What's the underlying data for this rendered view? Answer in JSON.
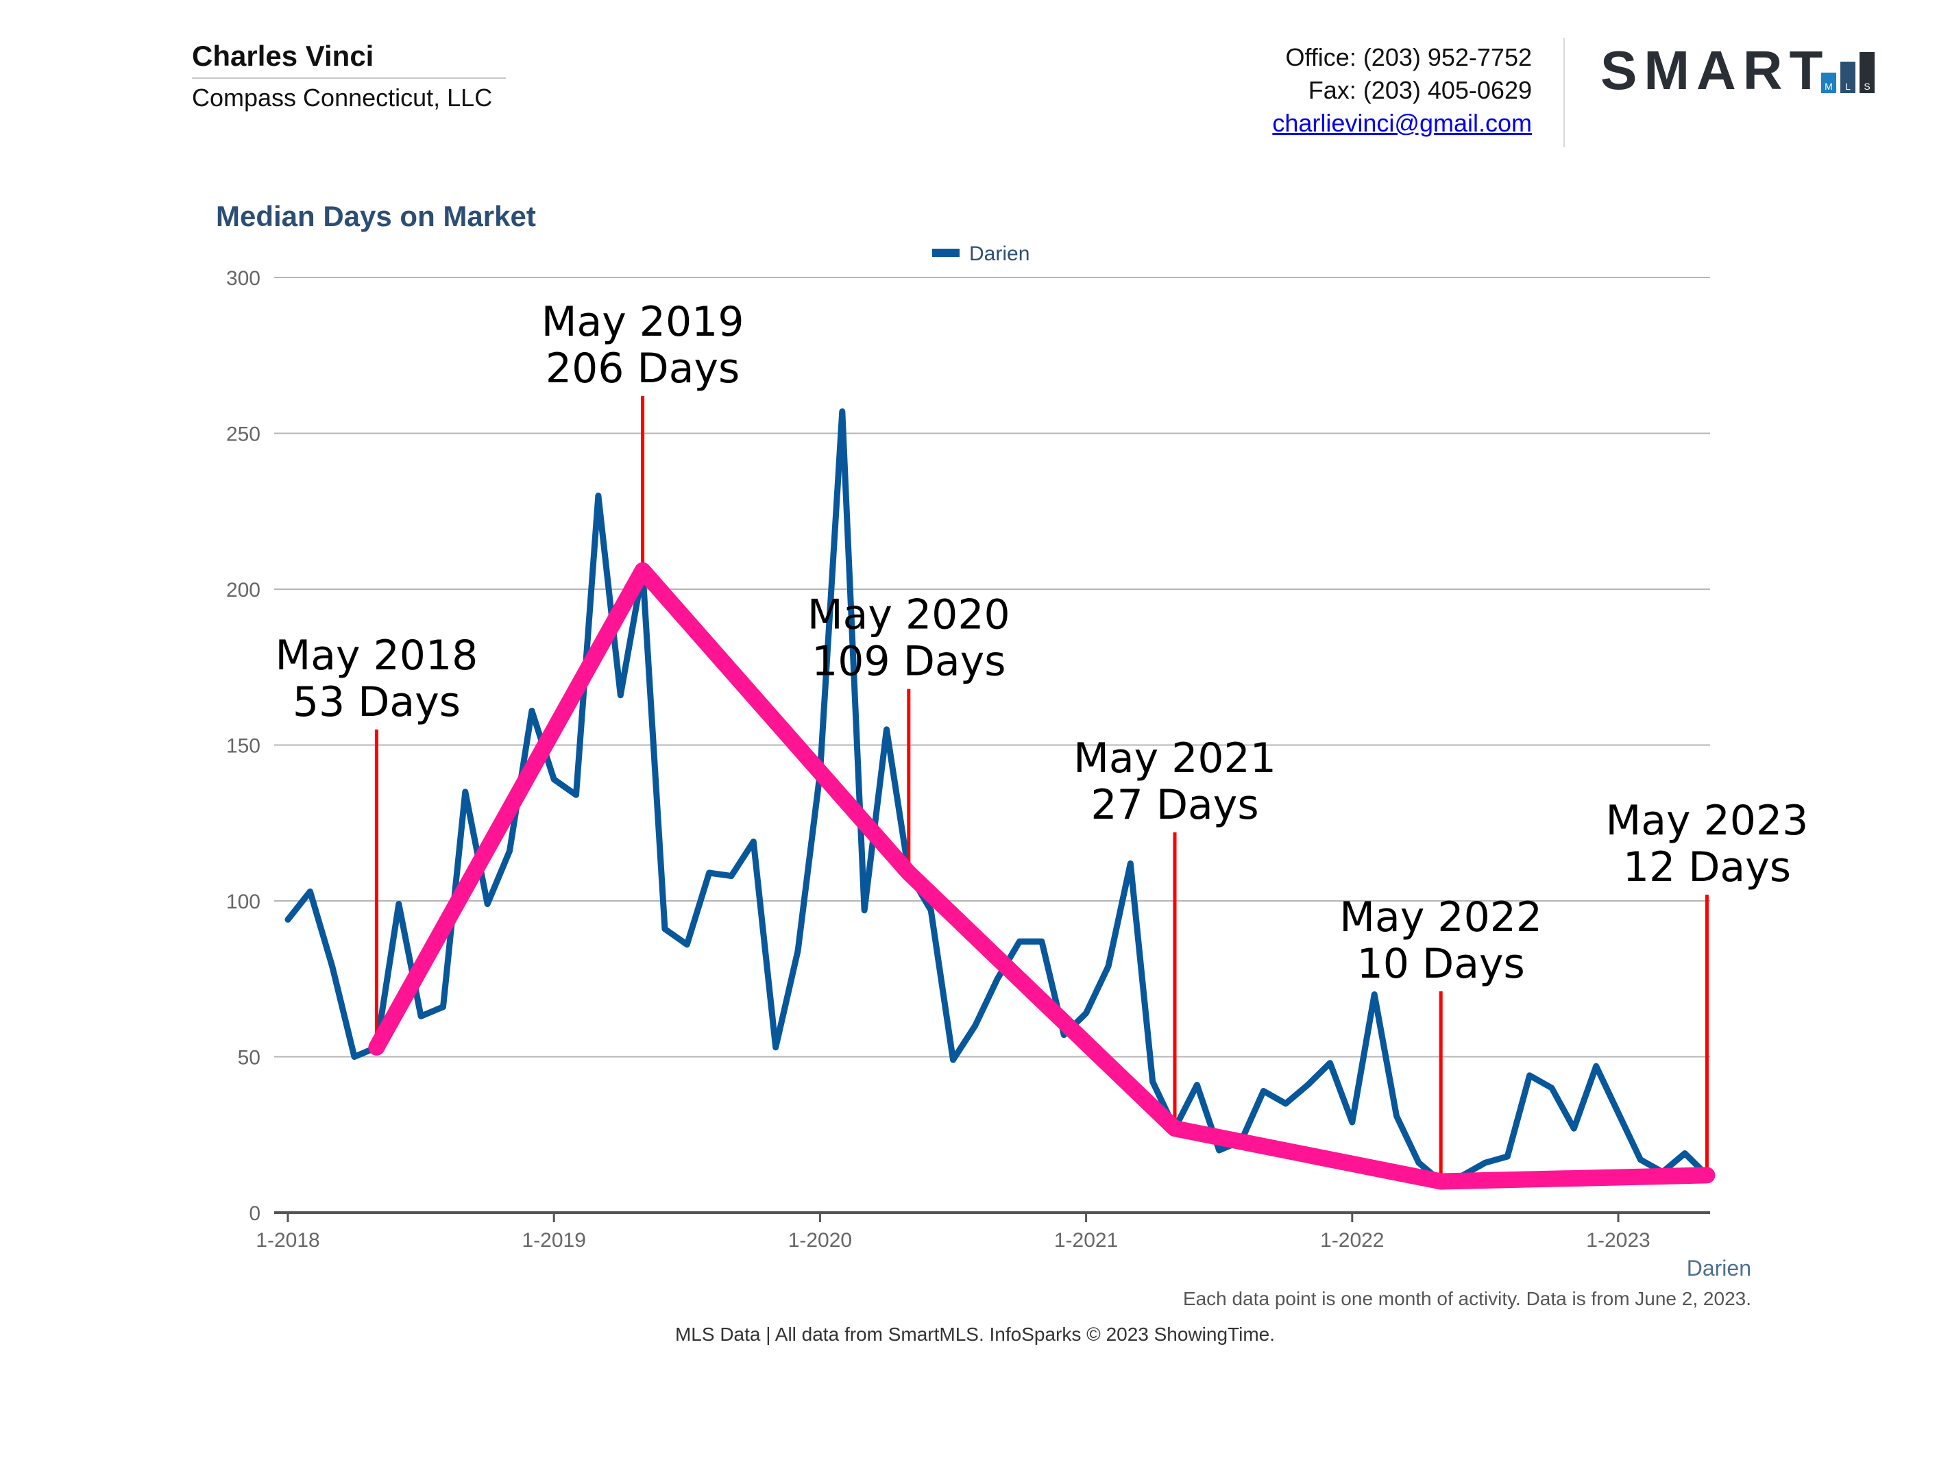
{
  "header": {
    "agent_name": "Charles Vinci",
    "company": "Compass Connecticut, LLC",
    "office": "Office: (203) 952-7752",
    "fax": "Fax: (203) 405-0629",
    "email": "charlievinci@gmail.com",
    "logo_text": "SMART",
    "logo_letters": [
      "M",
      "L",
      "S"
    ]
  },
  "colors": {
    "series": "#08579b",
    "trend": "#ff1493",
    "marker": "#ff0000",
    "title": "#2d4e74",
    "axis_text": "#666666",
    "logo_dark": "#2a2f36",
    "logo_blue": "#1e7fc1",
    "logo_mid": "#2b5070"
  },
  "chart_data": {
    "type": "line",
    "title": "Median Days on Market",
    "legend": [
      "Darien"
    ],
    "legend_position": "top-center",
    "xlabel": "Darien",
    "ylabel": "",
    "ylim": [
      0,
      300
    ],
    "yticks": [
      0,
      50,
      100,
      150,
      200,
      250,
      300
    ],
    "xticks": [
      "1-2018",
      "1-2019",
      "1-2020",
      "1-2021",
      "1-2022",
      "1-2023"
    ],
    "series": [
      {
        "name": "Darien",
        "start": "1-2018",
        "values": [
          94,
          103,
          79,
          50,
          53,
          99,
          63,
          66,
          135,
          99,
          116,
          161,
          139,
          134,
          230,
          166,
          206,
          91,
          86,
          109,
          108,
          119,
          53,
          84,
          141,
          257,
          97,
          155,
          109,
          97,
          49,
          60,
          75,
          87,
          87,
          57,
          64,
          79,
          112,
          42,
          27,
          41,
          20,
          23,
          39,
          35,
          41,
          48,
          29,
          70,
          31,
          16,
          10,
          12,
          16,
          18,
          44,
          40,
          27,
          47,
          32,
          17,
          13,
          19,
          12
        ]
      }
    ],
    "trend": {
      "points": [
        {
          "month": 4,
          "value": 53
        },
        {
          "month": 16,
          "value": 206
        },
        {
          "month": 28,
          "value": 109
        },
        {
          "month": 40,
          "value": 27
        },
        {
          "month": 52,
          "value": 10
        },
        {
          "month": 64,
          "value": 12
        }
      ]
    },
    "annotations": [
      {
        "month": 4,
        "line_top": 155,
        "line1": "May 2018",
        "line2": "53 Days"
      },
      {
        "month": 16,
        "line_top": 262,
        "line1": "May 2019",
        "line2": "206 Days"
      },
      {
        "month": 28,
        "line_top": 168,
        "line1": "May 2020",
        "line2": "109 Days"
      },
      {
        "month": 40,
        "line_top": 122,
        "line1": "May 2021",
        "line2": "27 Days"
      },
      {
        "month": 52,
        "line_top": 71,
        "line1": "May 2022",
        "line2": "10 Days"
      },
      {
        "month": 64,
        "line_top": 102,
        "line1": "May 2023",
        "line2": "12 Days"
      }
    ]
  },
  "footer": {
    "note": "Each data point is one month of activity. Data is from June 2, 2023.",
    "credit": "MLS Data | All data from SmartMLS. InfoSparks © 2023 ShowingTime."
  }
}
